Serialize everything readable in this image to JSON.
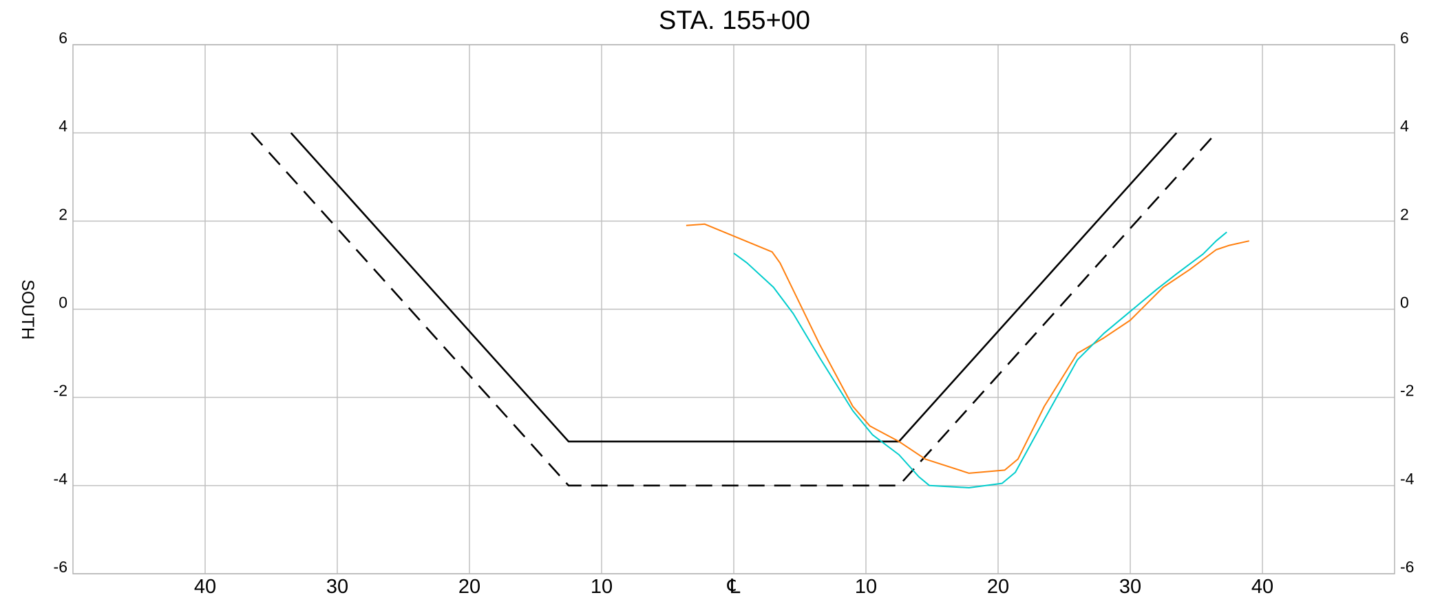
{
  "chart_data": {
    "type": "line",
    "title": "STA. 155+00",
    "ylabel": "SOUTH",
    "xlim": [
      -50,
      50
    ],
    "ylim": [
      -6,
      6
    ],
    "x_ticks": [
      -40,
      -30,
      -20,
      -10,
      0,
      10,
      20,
      30,
      40
    ],
    "x_tick_labels": [
      "40",
      "30",
      "20",
      "10",
      "℄",
      "10",
      "20",
      "30",
      "40"
    ],
    "y_ticks": [
      -6,
      -4,
      -2,
      0,
      2,
      4,
      6
    ],
    "y_tick_labels": [
      "-6",
      "-4",
      "-2",
      "0",
      "2",
      "4",
      "6"
    ],
    "grid": true,
    "series": [
      {
        "color": "#000000",
        "style": "solid",
        "points": [
          [
            -33.5,
            4
          ],
          [
            -12.5,
            -3
          ],
          [
            12.5,
            -3
          ],
          [
            33.5,
            4
          ]
        ]
      },
      {
        "color": "#000000",
        "style": "dashed",
        "points": [
          [
            -36.5,
            4
          ],
          [
            -12.5,
            -4
          ],
          [
            12.5,
            -4
          ],
          [
            36.5,
            4
          ]
        ]
      },
      {
        "color": "#ff7f0e",
        "style": "solid",
        "points": [
          [
            -3.6,
            1.9
          ],
          [
            -2.2,
            1.93
          ],
          [
            2.9,
            1.3
          ],
          [
            3.5,
            1.05
          ],
          [
            6.5,
            -0.8
          ],
          [
            9.0,
            -2.2
          ],
          [
            10.3,
            -2.65
          ],
          [
            12.5,
            -3.0
          ],
          [
            14.5,
            -3.4
          ],
          [
            17.8,
            -3.72
          ],
          [
            20.5,
            -3.65
          ],
          [
            21.5,
            -3.4
          ],
          [
            23.5,
            -2.2
          ],
          [
            26.0,
            -1.0
          ],
          [
            28.0,
            -0.65
          ],
          [
            30.0,
            -0.25
          ],
          [
            31.5,
            0.2
          ],
          [
            32.5,
            0.5
          ],
          [
            34.5,
            0.9
          ],
          [
            36.5,
            1.35
          ],
          [
            37.5,
            1.45
          ],
          [
            39.0,
            1.55
          ]
        ]
      },
      {
        "color": "#00cccc",
        "style": "solid",
        "points": [
          [
            0.0,
            1.27
          ],
          [
            1.0,
            1.05
          ],
          [
            3.0,
            0.5
          ],
          [
            4.5,
            -0.1
          ],
          [
            6.5,
            -1.1
          ],
          [
            9.0,
            -2.3
          ],
          [
            10.5,
            -2.85
          ],
          [
            12.5,
            -3.3
          ],
          [
            14.0,
            -3.8
          ],
          [
            14.8,
            -4.0
          ],
          [
            17.8,
            -4.05
          ],
          [
            20.3,
            -3.95
          ],
          [
            21.3,
            -3.7
          ],
          [
            23.5,
            -2.5
          ],
          [
            26.0,
            -1.15
          ],
          [
            28.0,
            -0.55
          ],
          [
            30.0,
            -0.05
          ],
          [
            32.0,
            0.45
          ],
          [
            33.5,
            0.8
          ],
          [
            35.5,
            1.25
          ],
          [
            36.5,
            1.55
          ],
          [
            37.3,
            1.75
          ]
        ]
      }
    ]
  }
}
